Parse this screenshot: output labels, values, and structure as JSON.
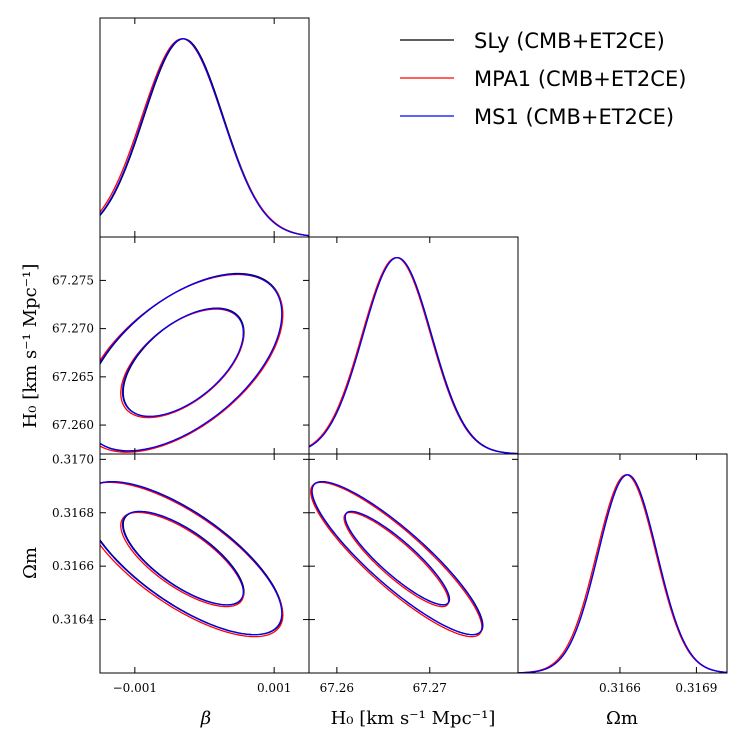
{
  "chart_data": {
    "type": "corner",
    "parameters": [
      {
        "key": "beta",
        "range": [
          -0.0015,
          0.0015
        ],
        "ticks": [
          -0.001,
          0.001
        ],
        "tick_labels": [
          "−0.001",
          "0.001"
        ]
      },
      {
        "key": "H0",
        "range": [
          67.257,
          67.2795
        ],
        "ticks": [
          67.26,
          67.27
        ],
        "tick_labels": [
          "67.26",
          "67.27"
        ]
      },
      {
        "key": "Om",
        "range": [
          0.3162,
          0.31702
        ],
        "ticks": [
          0.3166,
          0.3169
        ],
        "tick_labels": [
          "0.3166",
          "0.3169"
        ]
      }
    ],
    "y_ticks": {
      "H0": {
        "values": [
          67.26,
          67.265,
          67.27,
          67.275
        ],
        "labels": [
          "67.260",
          "67.265",
          "67.270",
          "67.275"
        ]
      },
      "Om": {
        "values": [
          0.3164,
          0.3166,
          0.3168,
          0.317
        ],
        "labels": [
          "0.3164",
          "0.3166",
          "0.3168",
          "0.3170"
        ]
      }
    },
    "axis_labels": {
      "beta": "β",
      "H0": "H₀ [km s⁻¹ Mpc⁻¹]",
      "Om": "Ωm"
    },
    "series": [
      {
        "name": "SLy (CMB+ET2CE)",
        "color": "#000000",
        "mean": {
          "beta": -0.0003,
          "H0": 67.2665,
          "Om": 0.31663
        },
        "sigma": {
          "beta": 0.00057,
          "H0": 0.0037,
          "Om": 0.000115
        }
      },
      {
        "name": "MPA1 (CMB+ET2CE)",
        "color": "#ff0000",
        "mean": {
          "beta": -0.00032,
          "H0": 67.2664,
          "Om": 0.316625
        },
        "sigma": {
          "beta": 0.00058,
          "H0": 0.0037,
          "Om": 0.000116
        }
      },
      {
        "name": "MS1 (CMB+ET2CE)",
        "color": "#0000ff",
        "mean": {
          "beta": -0.00031,
          "H0": 67.2665,
          "Om": 0.31663
        },
        "sigma": {
          "beta": 0.00057,
          "H0": 0.00368,
          "Om": 0.000115
        }
      }
    ],
    "correlations": {
      "beta_H0": 0.55,
      "beta_Om": -0.72,
      "H0_Om": -0.88
    },
    "contour_levels": [
      "68%",
      "95%"
    ],
    "legend_position": "top-right"
  }
}
